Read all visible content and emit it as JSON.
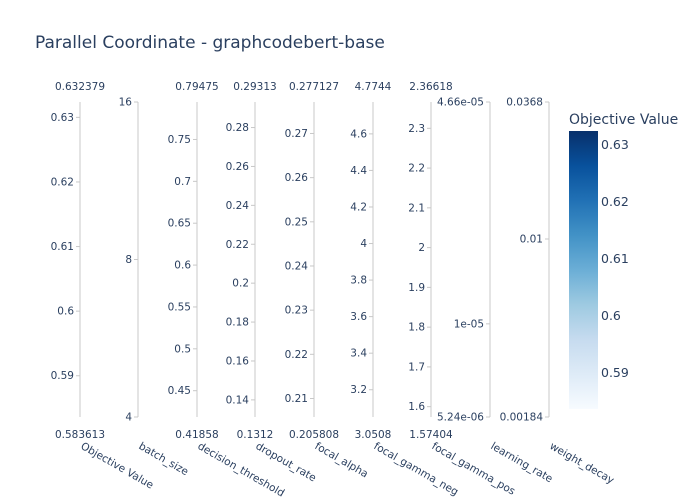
{
  "chart_data": {
    "type": "parallel_coordinates",
    "title": "Parallel Coordinate - graphcodebert-base",
    "colorbar": {
      "title": "Objective Value",
      "colorscale": [
        "#f7fbff",
        "#deebf7",
        "#c6dbef",
        "#9ecae1",
        "#6baed6",
        "#4292c6",
        "#2171b5",
        "#08519c",
        "#08306b"
      ],
      "range": [
        0.583613,
        0.632379
      ],
      "ticks": [
        "0.63",
        "0.62",
        "0.61",
        "0.6",
        "0.59"
      ],
      "tick_values": [
        0.63,
        0.62,
        0.61,
        0.6,
        0.59
      ]
    },
    "dimensions": [
      {
        "label": "Objective Value",
        "range_max_label": "0.632379",
        "range_min_label": "0.583613",
        "min": 0.583613,
        "max": 0.632379,
        "scale": "linear",
        "ticks": [
          "0.63",
          "0.62",
          "0.61",
          "0.6",
          "0.59"
        ],
        "tick_values": [
          0.63,
          0.62,
          0.61,
          0.6,
          0.59
        ]
      },
      {
        "label": "batch_size",
        "range_max_label": "",
        "range_min_label": "",
        "min": 4,
        "max": 16,
        "scale": "log",
        "ticks": [
          "16",
          "8",
          "4"
        ],
        "tick_values": [
          16,
          8,
          4
        ]
      },
      {
        "label": "decision_threshold",
        "range_max_label": "0.79475",
        "range_min_label": "0.41858",
        "min": 0.41858,
        "max": 0.79475,
        "scale": "linear",
        "ticks": [
          "0.75",
          "0.7",
          "0.65",
          "0.6",
          "0.55",
          "0.5",
          "0.45"
        ],
        "tick_values": [
          0.75,
          0.7,
          0.65,
          0.6,
          0.55,
          0.5,
          0.45
        ]
      },
      {
        "label": "dropout_rate",
        "range_max_label": "0.29313",
        "range_min_label": "0.1312",
        "min": 0.1312,
        "max": 0.29313,
        "scale": "linear",
        "ticks": [
          "0.28",
          "0.26",
          "0.24",
          "0.22",
          "0.2",
          "0.18",
          "0.16",
          "0.14"
        ],
        "tick_values": [
          0.28,
          0.26,
          0.24,
          0.22,
          0.2,
          0.18,
          0.16,
          0.14
        ]
      },
      {
        "label": "focal_alpha",
        "range_max_label": "0.277127",
        "range_min_label": "0.205808",
        "min": 0.205808,
        "max": 0.277127,
        "scale": "linear",
        "ticks": [
          "0.27",
          "0.26",
          "0.25",
          "0.24",
          "0.23",
          "0.22",
          "0.21"
        ],
        "tick_values": [
          0.27,
          0.26,
          0.25,
          0.24,
          0.23,
          0.22,
          0.21
        ]
      },
      {
        "label": "focal_gamma_neg",
        "range_max_label": "4.7744",
        "range_min_label": "3.0508",
        "min": 3.0508,
        "max": 4.7744,
        "scale": "linear",
        "ticks": [
          "4.6",
          "4.4",
          "4.2",
          "4",
          "3.8",
          "3.6",
          "3.4",
          "3.2"
        ],
        "tick_values": [
          4.6,
          4.4,
          4.2,
          4.0,
          3.8,
          3.6,
          3.4,
          3.2
        ]
      },
      {
        "label": "focal_gamma_pos",
        "range_max_label": "2.36618",
        "range_min_label": "1.57404",
        "min": 1.57404,
        "max": 2.36618,
        "scale": "linear",
        "ticks": [
          "2.3",
          "2.2",
          "2.1",
          "2",
          "1.9",
          "1.8",
          "1.7",
          "1.6"
        ],
        "tick_values": [
          2.3,
          2.2,
          2.1,
          2.0,
          1.9,
          1.8,
          1.7,
          1.6
        ]
      },
      {
        "label": "learning_rate",
        "range_max_label": "",
        "range_min_label": "",
        "min": 5.24e-06,
        "max": 4.66e-05,
        "scale": "log",
        "ticks": [
          "4.66e-05",
          "1e-05",
          "5.24e-06"
        ],
        "tick_values": [
          4.66e-05,
          1e-05,
          5.24e-06
        ]
      },
      {
        "label": "weight_decay",
        "range_max_label": "",
        "range_min_label": "",
        "min": 0.00184,
        "max": 0.0368,
        "scale": "log",
        "ticks": [
          "0.0368",
          "0.01",
          "0.00184"
        ],
        "tick_values": [
          0.0368,
          0.01,
          0.00184
        ]
      }
    ]
  }
}
